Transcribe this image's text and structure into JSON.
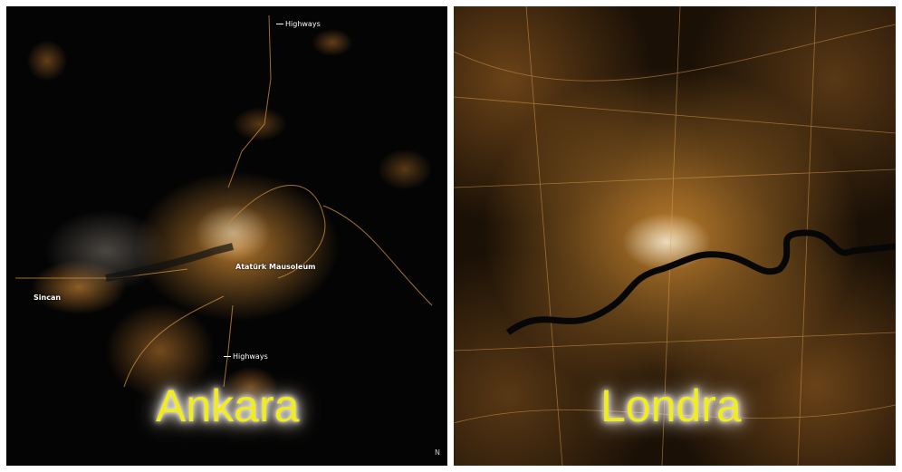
{
  "panels": [
    {
      "title": "Ankara",
      "labels": {
        "highways_north": "Highways",
        "ataturk": "Atatürk Mausoleum",
        "sincan": "Sincan",
        "highways_south": "Highways"
      },
      "compass": "N"
    },
    {
      "title": "Londra"
    }
  ],
  "colors": {
    "title_fill": "#f2ec1a",
    "city_light": "#d08a32",
    "background": "#050505"
  }
}
